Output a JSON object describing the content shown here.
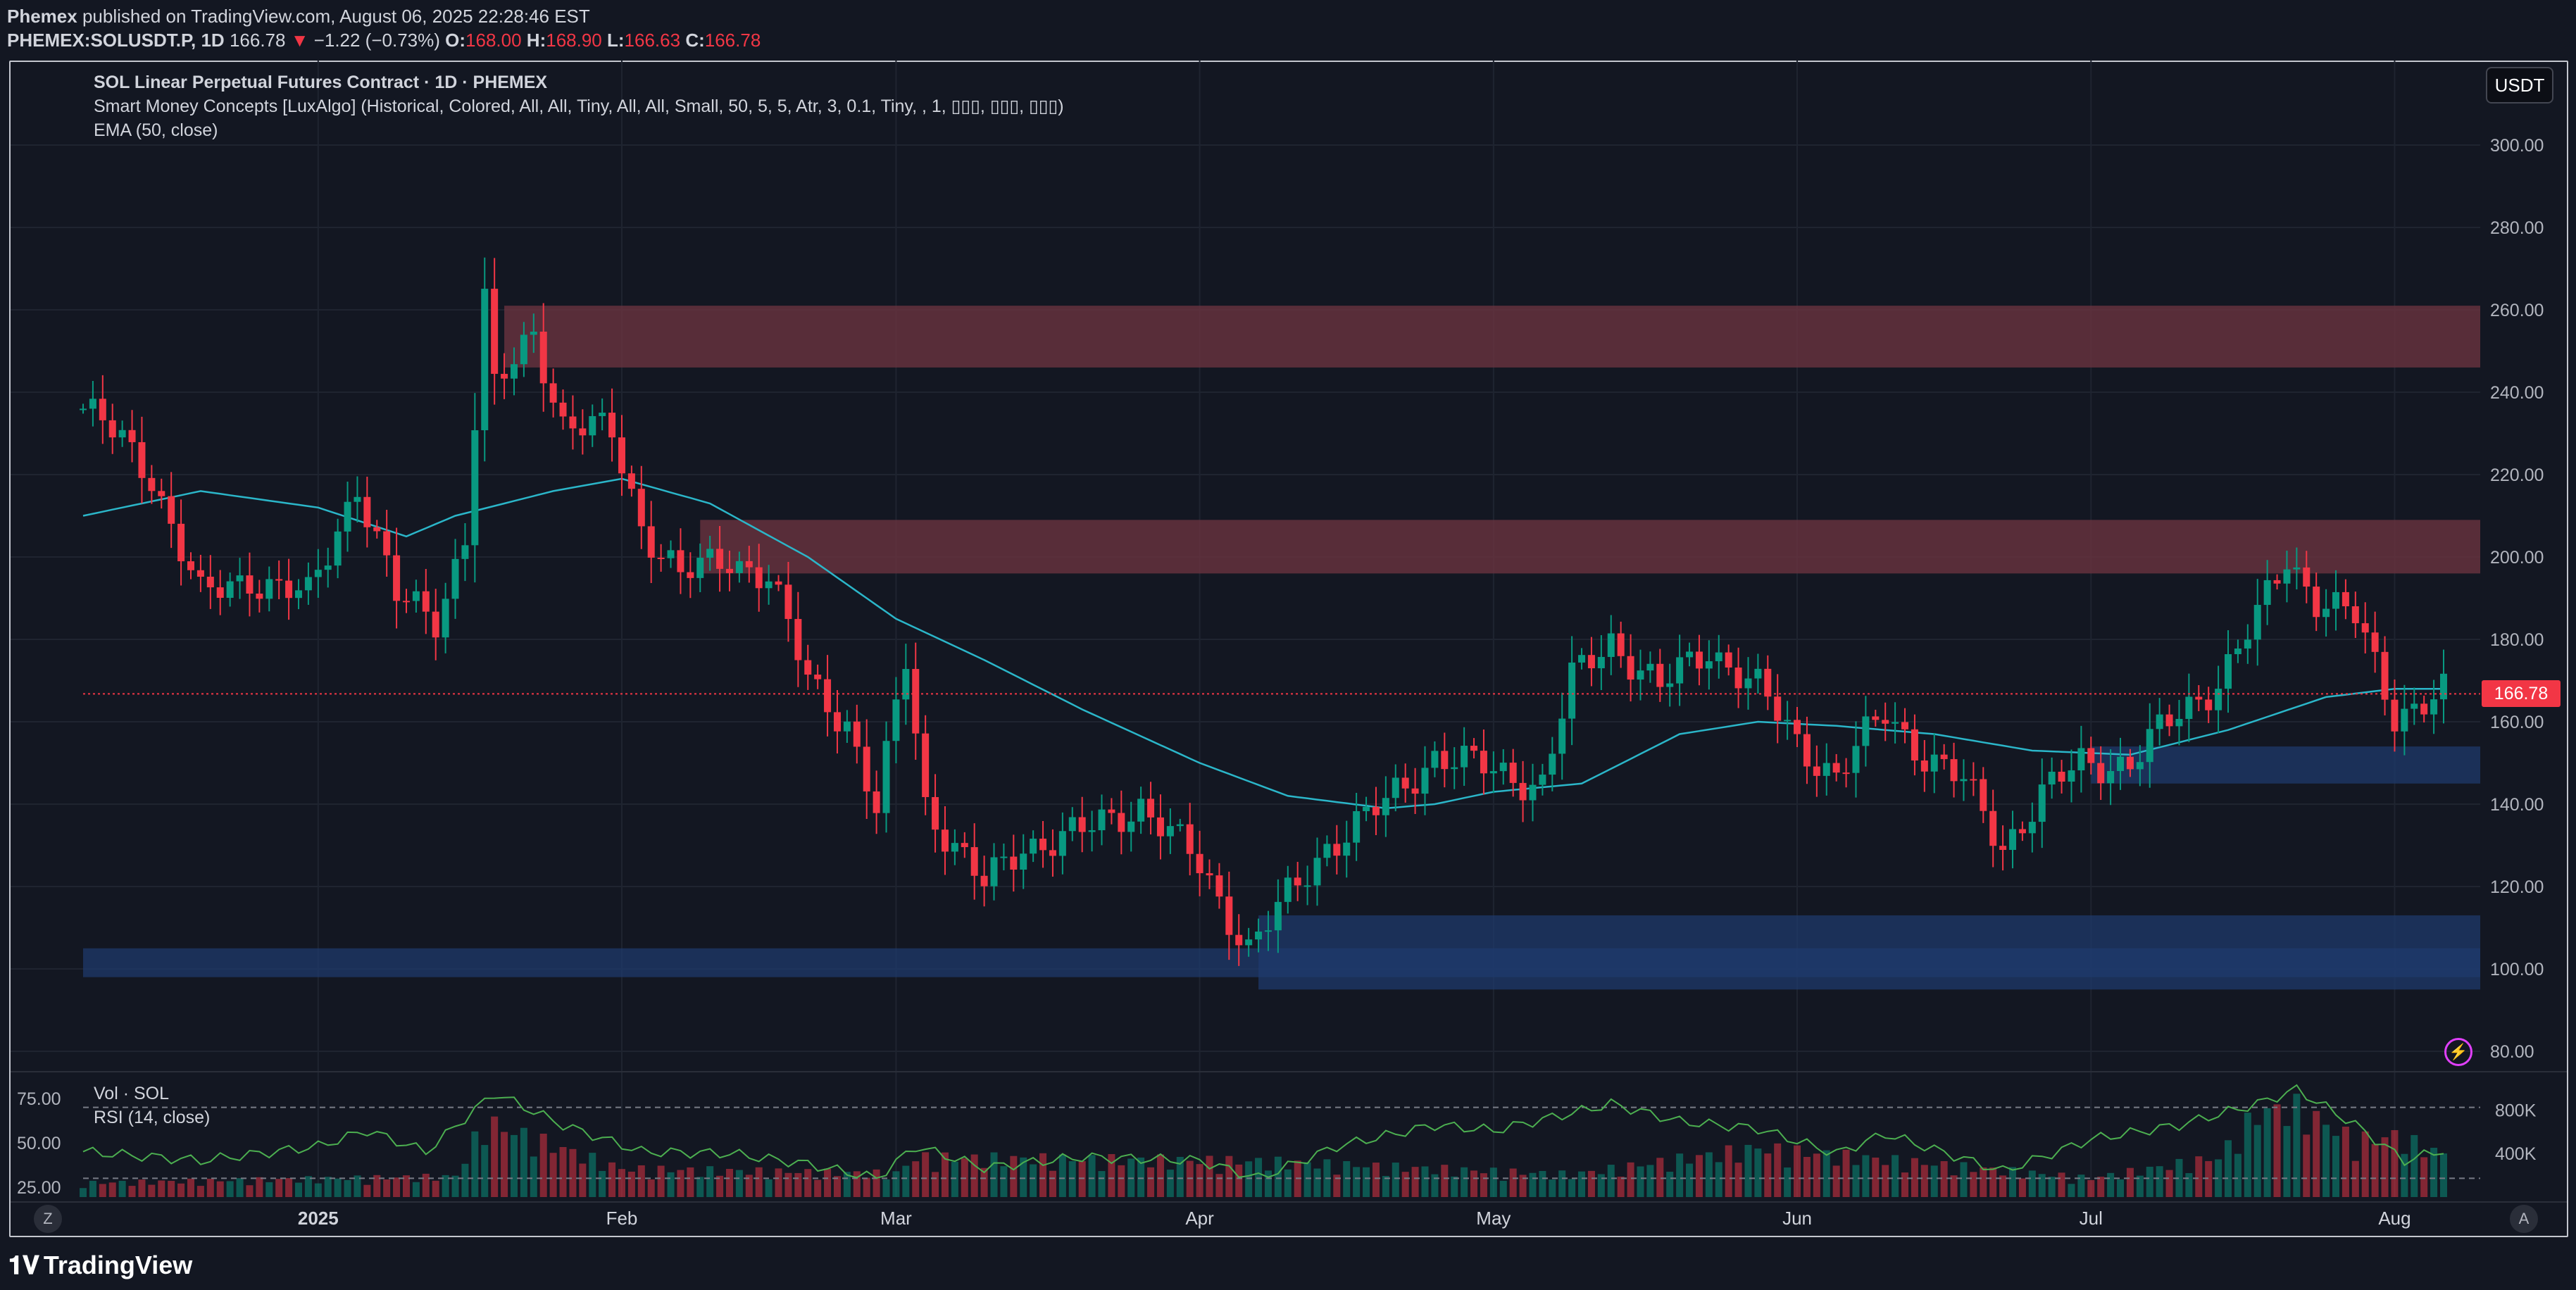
{
  "header": {
    "publisher": "Phemex",
    "published_text": "published on TradingView.com, August 06, 2025 22:28:46 EST",
    "symbol": "PHEMEX:SOLUSDT.P, 1D",
    "last": "166.78",
    "change_arrow": "▼",
    "change": "−1.22 (−0.73%)",
    "o_label": "O:",
    "o": "168.00",
    "h_label": "H:",
    "h": "168.90",
    "l_label": "L:",
    "l": "166.63",
    "c_label": "C:",
    "c": "166.78"
  },
  "legend": {
    "title": "SOL Linear Perpetual Futures Contract · 1D · PHEMEX",
    "smc": "Smart Money Concepts [LuxAlgo] (Historical, Colored, All, All, Tiny, All, All, Small, 50, 5, 5, Atr, 3, 0.1, Tiny, , 1, ▯▯▯, ▯▯▯, ▯▯▯)",
    "ema": "EMA (50, close)",
    "vol": "Vol · SOL",
    "rsi": "RSI (14, close)"
  },
  "currency_button": "USDT",
  "last_price_tag": "166.78",
  "bottom": {
    "z_button": "Z",
    "a_button": "A",
    "brand": "TradingView"
  },
  "colors": {
    "background": "#131722",
    "up": "#089981",
    "down": "#f23645",
    "ema": "#2bb6c9",
    "rsi": "#4caf50",
    "supply_zone": "#6b3340",
    "demand_zone": "#1f3a6e"
  },
  "chart_data": {
    "type": "candlestick",
    "title": "SOL Linear Perpetual Futures Contract · 1D · PHEMEX",
    "ylim": [
      70,
      305
    ],
    "y_ticks": [
      "300.00",
      "280.00",
      "260.00",
      "240.00",
      "220.00",
      "200.00",
      "180.00",
      "160.00",
      "140.00",
      "120.00",
      "100.00",
      "80.00"
    ],
    "x_ticks": [
      "2025",
      "Feb",
      "Mar",
      "Apr",
      "May",
      "Jun",
      "Jul",
      "Aug"
    ],
    "x_tick_dates": [
      "2025-01-01",
      "2025-02-01",
      "2025-03-01",
      "2025-04-01",
      "2025-05-01",
      "2025-06-01",
      "2025-07-01",
      "2025-08-01"
    ],
    "x_start": "2024-12-08",
    "x_end": "2025-08-06",
    "last_price": 166.78,
    "zones": [
      {
        "kind": "supply",
        "from": "2025-01-20",
        "to": "2025-08-30",
        "low": 246,
        "high": 261
      },
      {
        "kind": "supply",
        "from": "2025-02-09",
        "to": "2025-08-30",
        "low": 196,
        "high": 209
      },
      {
        "kind": "demand",
        "from": "2024-12-08",
        "to": "2025-08-30",
        "low": 98,
        "high": 105
      },
      {
        "kind": "demand",
        "from": "2025-04-07",
        "to": "2025-08-30",
        "low": 95,
        "high": 113
      },
      {
        "kind": "demand",
        "from": "2025-07-01",
        "to": "2025-08-30",
        "low": 145,
        "high": 154
      }
    ],
    "ema_anchors": [
      [
        "2024-12-08",
        210
      ],
      [
        "2024-12-20",
        216
      ],
      [
        "2025-01-01",
        212
      ],
      [
        "2025-01-10",
        205
      ],
      [
        "2025-01-15",
        210
      ],
      [
        "2025-01-25",
        216
      ],
      [
        "2025-02-01",
        219
      ],
      [
        "2025-02-10",
        213
      ],
      [
        "2025-02-20",
        200
      ],
      [
        "2025-03-01",
        185
      ],
      [
        "2025-03-10",
        175
      ],
      [
        "2025-03-20",
        163
      ],
      [
        "2025-04-01",
        150
      ],
      [
        "2025-04-10",
        142
      ],
      [
        "2025-04-20",
        139
      ],
      [
        "2025-04-25",
        140
      ],
      [
        "2025-05-01",
        143
      ],
      [
        "2025-05-10",
        145
      ],
      [
        "2025-05-20",
        157
      ],
      [
        "2025-05-28",
        160
      ],
      [
        "2025-06-05",
        159
      ],
      [
        "2025-06-15",
        157
      ],
      [
        "2025-06-25",
        153
      ],
      [
        "2025-07-05",
        152
      ],
      [
        "2025-07-15",
        158
      ],
      [
        "2025-07-25",
        166
      ],
      [
        "2025-08-01",
        168
      ],
      [
        "2025-08-06",
        168
      ]
    ],
    "close_anchors": [
      [
        "2024-12-08",
        236
      ],
      [
        "2024-12-12",
        228
      ],
      [
        "2024-12-15",
        220
      ],
      [
        "2024-12-20",
        190
      ],
      [
        "2024-12-25",
        195
      ],
      [
        "2024-12-31",
        190
      ],
      [
        "2025-01-05",
        218
      ],
      [
        "2025-01-09",
        190
      ],
      [
        "2025-01-13",
        185
      ],
      [
        "2025-01-16",
        205
      ],
      [
        "2025-01-18",
        262
      ],
      [
        "2025-01-19",
        240
      ],
      [
        "2025-01-23",
        255
      ],
      [
        "2025-01-26",
        232
      ],
      [
        "2025-01-31",
        230
      ],
      [
        "2025-02-03",
        208
      ],
      [
        "2025-02-07",
        195
      ],
      [
        "2025-02-12",
        200
      ],
      [
        "2025-02-16",
        195
      ],
      [
        "2025-02-20",
        170
      ],
      [
        "2025-02-24",
        160
      ],
      [
        "2025-02-27",
        138
      ],
      [
        "2025-03-02",
        175
      ],
      [
        "2025-03-04",
        140
      ],
      [
        "2025-03-10",
        120
      ],
      [
        "2025-03-14",
        130
      ],
      [
        "2025-03-20",
        133
      ],
      [
        "2025-03-26",
        140
      ],
      [
        "2025-04-01",
        125
      ],
      [
        "2025-04-06",
        105
      ],
      [
        "2025-04-09",
        114
      ],
      [
        "2025-04-14",
        130
      ],
      [
        "2025-04-20",
        140
      ],
      [
        "2025-04-25",
        152
      ],
      [
        "2025-05-01",
        148
      ],
      [
        "2025-05-06",
        145
      ],
      [
        "2025-05-09",
        170
      ],
      [
        "2025-05-13",
        180
      ],
      [
        "2025-05-18",
        168
      ],
      [
        "2025-05-23",
        178
      ],
      [
        "2025-05-28",
        168
      ],
      [
        "2025-06-01",
        155
      ],
      [
        "2025-06-05",
        147
      ],
      [
        "2025-06-10",
        162
      ],
      [
        "2025-06-14",
        152
      ],
      [
        "2025-06-18",
        145
      ],
      [
        "2025-06-22",
        130
      ],
      [
        "2025-06-26",
        142
      ],
      [
        "2025-06-30",
        150
      ],
      [
        "2025-07-05",
        150
      ],
      [
        "2025-07-10",
        162
      ],
      [
        "2025-07-14",
        170
      ],
      [
        "2025-07-18",
        185
      ],
      [
        "2025-07-21",
        200
      ],
      [
        "2025-07-24",
        190
      ],
      [
        "2025-07-28",
        185
      ],
      [
        "2025-08-01",
        162
      ],
      [
        "2025-08-04",
        165
      ],
      [
        "2025-08-06",
        166.78
      ]
    ],
    "volume_ylim": [
      0,
      1100
    ],
    "volume_ticks": [
      "800K",
      "400K"
    ],
    "volume_anchors": [
      [
        "2024-12-08",
        150
      ],
      [
        "2025-01-15",
        220
      ],
      [
        "2025-01-18",
        800
      ],
      [
        "2025-02-01",
        300
      ],
      [
        "2025-03-01",
        250
      ],
      [
        "2025-03-03",
        420
      ],
      [
        "2025-04-07",
        380
      ],
      [
        "2025-05-09",
        240
      ],
      [
        "2025-05-28",
        520
      ],
      [
        "2025-07-01",
        200
      ],
      [
        "2025-07-14",
        420
      ],
      [
        "2025-07-18",
        900
      ],
      [
        "2025-07-22",
        950
      ],
      [
        "2025-07-28",
        600
      ],
      [
        "2025-08-01",
        650
      ],
      [
        "2025-08-06",
        450
      ]
    ],
    "rsi_ylim": [
      15,
      85
    ],
    "rsi_ticks": [
      "75.00",
      "50.00",
      "25.00"
    ],
    "rsi_bands": [
      70,
      30
    ],
    "rsi_anchors": [
      [
        "2024-12-08",
        45
      ],
      [
        "2024-12-20",
        40
      ],
      [
        "2025-01-01",
        48
      ],
      [
        "2025-01-06",
        57
      ],
      [
        "2025-01-12",
        45
      ],
      [
        "2025-01-19",
        78
      ],
      [
        "2025-01-26",
        60
      ],
      [
        "2025-02-03",
        45
      ],
      [
        "2025-02-12",
        44
      ],
      [
        "2025-02-20",
        38
      ],
      [
        "2025-02-27",
        30
      ],
      [
        "2025-03-03",
        48
      ],
      [
        "2025-03-10",
        36
      ],
      [
        "2025-03-20",
        42
      ],
      [
        "2025-04-01",
        40
      ],
      [
        "2025-04-07",
        30
      ],
      [
        "2025-04-15",
        48
      ],
      [
        "2025-04-25",
        60
      ],
      [
        "2025-05-01",
        57
      ],
      [
        "2025-05-10",
        68
      ],
      [
        "2025-05-13",
        72
      ],
      [
        "2025-05-20",
        62
      ],
      [
        "2025-05-28",
        58
      ],
      [
        "2025-06-05",
        44
      ],
      [
        "2025-06-10",
        55
      ],
      [
        "2025-06-22",
        34
      ],
      [
        "2025-07-01",
        52
      ],
      [
        "2025-07-10",
        60
      ],
      [
        "2025-07-18",
        72
      ],
      [
        "2025-07-22",
        80
      ],
      [
        "2025-07-28",
        60
      ],
      [
        "2025-08-02",
        40
      ],
      [
        "2025-08-06",
        46
      ]
    ]
  }
}
